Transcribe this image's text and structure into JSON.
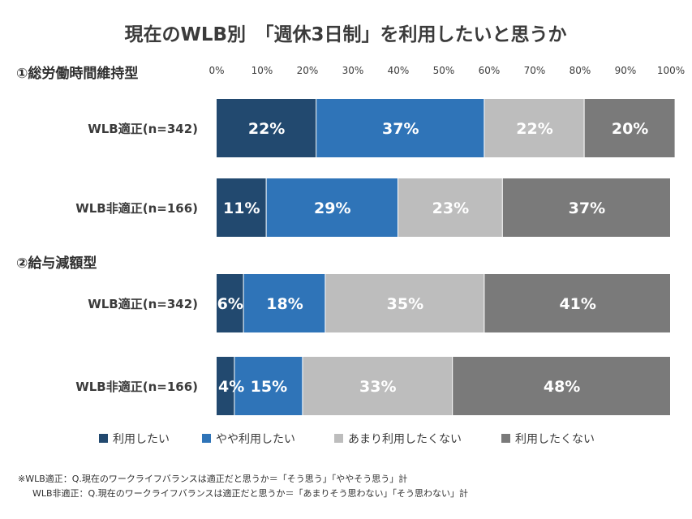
{
  "chart_data": {
    "type": "bar",
    "orientation": "horizontal",
    "stacked": true,
    "title": "現在のWLB別　「週休3日制」を利用したいと思うか",
    "xlim": [
      0,
      100
    ],
    "x_ticks": [
      "0%",
      "10%",
      "20%",
      "30%",
      "40%",
      "50%",
      "60%",
      "70%",
      "80%",
      "90%",
      "100%"
    ],
    "legend": {
      "placement": "bottom",
      "items": [
        "利用したい",
        "やや利用したい",
        "あまり利用したくない",
        "利用したくない"
      ]
    },
    "colors": [
      "#22496f",
      "#2f74b8",
      "#bdbdbd",
      "#7a7a7a"
    ],
    "groups": [
      {
        "label": "①総労働時間維持型",
        "rows": [
          {
            "label": "WLB適正(n=342)",
            "values": [
              22,
              37,
              22,
              20
            ],
            "value_labels": [
              "22%",
              "37%",
              "22%",
              "20%"
            ]
          },
          {
            "label": "WLB非適正(n=166)",
            "values": [
              11,
              29,
              23,
              37
            ],
            "value_labels": [
              "11%",
              "29%",
              "23%",
              "37%"
            ]
          }
        ]
      },
      {
        "label": "②給与減額型",
        "rows": [
          {
            "label": "WLB適正(n=342)",
            "values": [
              6,
              18,
              35,
              41
            ],
            "value_labels": [
              "6%",
              "18%",
              "35%",
              "41%"
            ]
          },
          {
            "label": "WLB非適正(n=166)",
            "values": [
              4,
              15,
              33,
              48
            ],
            "value_labels": [
              "4%",
              "15%",
              "33%",
              "48%"
            ]
          }
        ]
      }
    ],
    "notes": [
      "※WLB適正：Q.現在のワークライフバランスは適正だと思うか＝「そう思う」「ややそう思う」計",
      "WLB非適正：Q.現在のワークライフバランスは適正だと思うか＝「あまりそう思わない」「そう思わない」計"
    ]
  }
}
